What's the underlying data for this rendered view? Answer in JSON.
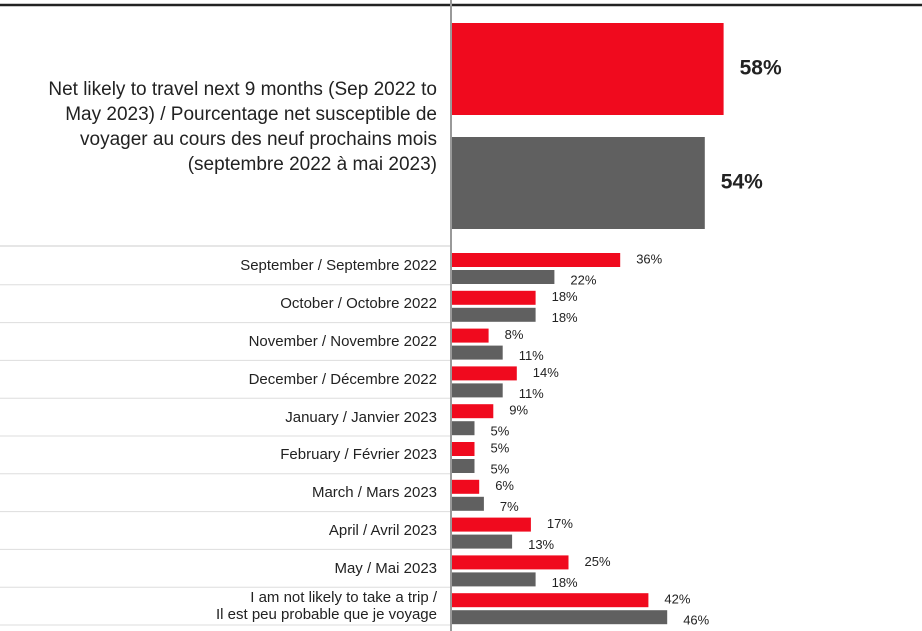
{
  "chart_data": [
    {
      "type": "bar",
      "orientation": "horizontal",
      "categories": [
        "Net likely to travel next 9 months (Sep 2022 to May 2023) / Pourcentage net susceptible de voyager au cours des neuf prochains mois (septembre 2022 à mai 2023)"
      ],
      "series": [
        {
          "color": "#f00a1e",
          "values": [
            58
          ],
          "value_labels": [
            "58%"
          ]
        },
        {
          "color": "#606060",
          "values": [
            54
          ],
          "value_labels": [
            "54%"
          ]
        }
      ],
      "xlim": [
        0,
        100
      ]
    },
    {
      "type": "bar",
      "orientation": "horizontal",
      "categories": [
        "September / Septembre 2022",
        "October / Octobre 2022",
        "November / Novembre 2022",
        "December / Décembre 2022",
        "January / Janvier 2023",
        "February / Février  2023",
        "March / Mars  2023",
        "April / Avril  2023",
        "May / Mai  2023",
        "I am not likely to take a trip /\nIl est peu probable que je voyage"
      ],
      "series": [
        {
          "color": "#f00a1e",
          "values": [
            36,
            18,
            8,
            14,
            9,
            5,
            6,
            17,
            25,
            42
          ],
          "value_labels": [
            "36%",
            "18%",
            "8%",
            "14%",
            "9%",
            "5%",
            "6%",
            "17%",
            "25%",
            "42%"
          ]
        },
        {
          "color": "#606060",
          "values": [
            22,
            18,
            11,
            11,
            5,
            5,
            7,
            13,
            18,
            46
          ],
          "value_labels": [
            "22%",
            "18%",
            "11%",
            "11%",
            "5%",
            "5%",
            "7%",
            "13%",
            "18%",
            "46%"
          ]
        }
      ],
      "xlim": [
        0,
        100
      ]
    }
  ]
}
